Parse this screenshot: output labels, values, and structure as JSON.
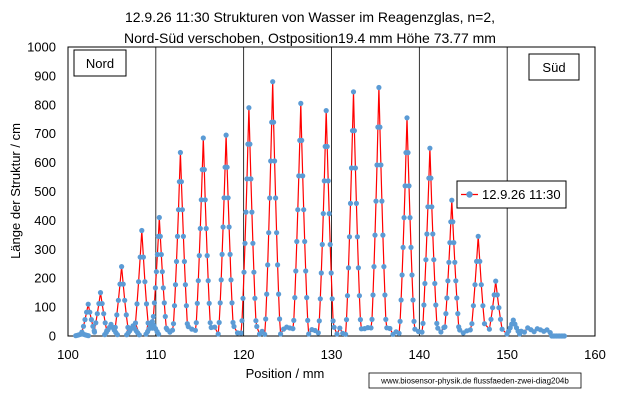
{
  "chart_data": {
    "type": "line",
    "title_line1": "12.9.26  11:30  Strukturen von Wasser im Reagenzglas, n=2,",
    "title_line2": "Nord-Süd verschoben, Ostposition19.4  mm Höhe 73.77 mm",
    "xlabel": "Position / mm",
    "ylabel": "Länge der Struktur / cm",
    "xlim": [
      100,
      160
    ],
    "ylim": [
      0,
      1000
    ],
    "x_ticks": [
      100,
      110,
      120,
      130,
      140,
      150,
      160
    ],
    "y_ticks": [
      0,
      100,
      200,
      300,
      400,
      500,
      600,
      700,
      800,
      900,
      1000
    ],
    "grid": "vertical lines every 10 mm",
    "legend_position": "right",
    "annotations": {
      "left_box": "Nord",
      "right_box": "Süd",
      "credit": "www.biosensor-physik.de  flussfaeden-zwei-diag204b"
    },
    "series": [
      {
        "name": "12.9.26 11:30",
        "line_color": "#ff0000",
        "marker_color": "#5b9bd5",
        "peaks": [
          {
            "x": 101.6,
            "y": 8
          },
          {
            "x": 102.3,
            "y": 110
          },
          {
            "x": 103.7,
            "y": 150
          },
          {
            "x": 104.9,
            "y": 40
          },
          {
            "x": 106.1,
            "y": 240
          },
          {
            "x": 107.4,
            "y": 35
          },
          {
            "x": 108.4,
            "y": 365
          },
          {
            "x": 109.6,
            "y": 50
          },
          {
            "x": 110.4,
            "y": 410
          },
          {
            "x": 112.8,
            "y": 635
          },
          {
            "x": 115.4,
            "y": 685
          },
          {
            "x": 118.0,
            "y": 695
          },
          {
            "x": 120.6,
            "y": 790
          },
          {
            "x": 123.3,
            "y": 880
          },
          {
            "x": 126.5,
            "y": 805
          },
          {
            "x": 129.4,
            "y": 780
          },
          {
            "x": 132.5,
            "y": 845
          },
          {
            "x": 135.4,
            "y": 860
          },
          {
            "x": 138.6,
            "y": 755
          },
          {
            "x": 141.2,
            "y": 650
          },
          {
            "x": 143.7,
            "y": 470
          },
          {
            "x": 146.7,
            "y": 345
          },
          {
            "x": 148.7,
            "y": 190
          },
          {
            "x": 150.7,
            "y": 55
          },
          {
            "x": 155.8,
            "y": 0
          }
        ]
      }
    ]
  }
}
